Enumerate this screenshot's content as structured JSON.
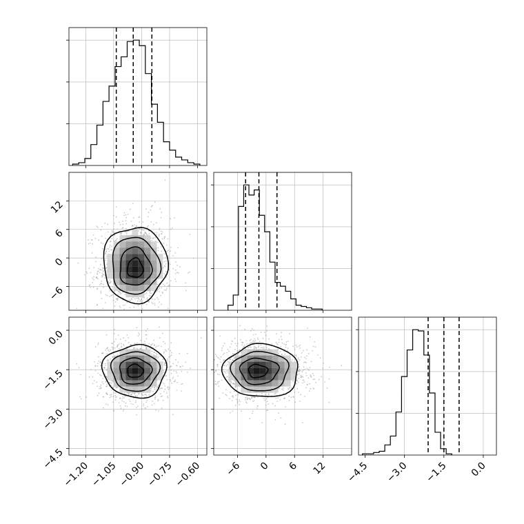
{
  "chart_data": {
    "type": "corner",
    "parameters": [
      {
        "range": [
          -1.29,
          -0.55
        ],
        "ticks": [
          -1.2,
          -1.05,
          -0.9,
          -0.75,
          -0.6
        ],
        "tick_labels": [
          "−1.20",
          "−1.05",
          "−0.90",
          "−0.75",
          "−0.60"
        ],
        "quantiles": [
          -1.036,
          -0.945,
          -0.845
        ],
        "histogram": {
          "bin_start": -1.27,
          "bin_width": 0.0325,
          "counts": [
            1,
            2,
            5,
            15,
            29,
            46,
            57,
            71,
            78,
            89,
            90,
            86,
            66,
            44,
            31,
            17,
            11,
            6,
            4,
            2,
            1
          ]
        }
      },
      {
        "range": [
          -11,
          18
        ],
        "ticks": [
          -6,
          0,
          6,
          12
        ],
        "tick_labels": [
          "−6",
          "0",
          "6",
          "12"
        ],
        "quantiles": [
          -4.3,
          -1.5,
          2.3
        ],
        "histogram": {
          "bin_start": -8,
          "bin_width": 1.1,
          "counts": [
            4,
            12,
            82,
            99,
            91,
            95,
            75,
            62,
            38,
            22,
            19,
            15,
            9,
            4,
            3,
            2,
            1,
            1
          ]
        }
      },
      {
        "range": [
          -4.75,
          0.5
        ],
        "ticks": [
          -4.5,
          -3.0,
          -1.5,
          0.0
        ],
        "tick_labels": [
          "−4.5",
          "−3.0",
          "−1.5",
          "0.0"
        ],
        "quantiles": [
          -2.1,
          -1.5,
          -0.92
        ],
        "histogram": {
          "bin_start": -4.6,
          "bin_width": 0.2125,
          "counts": [
            1,
            1,
            2,
            3,
            8,
            15,
            34,
            62,
            83,
            99,
            98,
            79,
            49,
            18,
            5,
            1
          ]
        }
      }
    ],
    "pairs": [
      {
        "x": 0,
        "y": 1,
        "center": [
          -0.935,
          -2.4
        ],
        "spread": [
          0.085,
          3.4
        ],
        "ylim": [
          -11,
          18
        ],
        "ticks_y": [
          -6,
          0,
          6,
          12
        ],
        "tick_labels_y": [
          "−6",
          "0",
          "6",
          "12"
        ]
      },
      {
        "x": 0,
        "y": 2,
        "center": [
          -0.935,
          -1.55
        ],
        "spread": [
          0.085,
          0.5
        ],
        "ylim": [
          -4.75,
          0.5
        ],
        "ticks_y": [
          -4.5,
          -3.0,
          -1.5,
          0.0
        ],
        "tick_labels_y": [
          "−4.5",
          "−3.0",
          "−1.5",
          "0.0"
        ]
      },
      {
        "x": 1,
        "y": 2,
        "center": [
          -2.0,
          -1.55
        ],
        "spread": [
          3.4,
          0.5
        ],
        "ylim": [
          -4.75,
          0.5
        ],
        "ticks_y": [
          -4.5,
          -3.0,
          -1.5,
          0.0
        ],
        "tick_labels_y": [
          "−4.5",
          "−3.0",
          "−1.5",
          "0.0"
        ]
      }
    ],
    "grid": true,
    "colors": {
      "line": "#000000",
      "grid": "#b0b0b0",
      "points": "#9a9a9a"
    }
  }
}
